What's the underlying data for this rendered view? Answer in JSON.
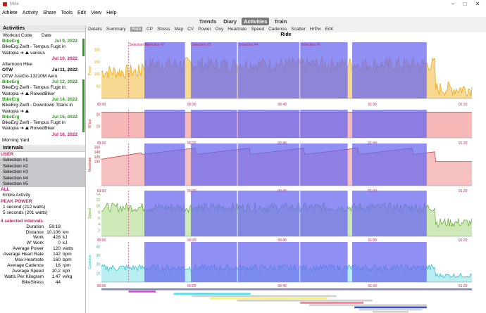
{
  "window": {
    "title": "Mike"
  },
  "menu": [
    "Athlete",
    "Activity",
    "Share",
    "Tools",
    "Edit",
    "View",
    "Help"
  ],
  "views": [
    "Trends",
    "Diary",
    "Activities",
    "Train"
  ],
  "active_view": "Activities",
  "activities": {
    "header": "Activities",
    "col_workout": "Workout Code",
    "col_date": "Date",
    "items": [
      {
        "name": "BikeErg",
        "date": "Jul 9, 2022",
        "color": "green",
        "line2": "BikeErg Zwift - Tempus Fugit in",
        "line3": "Watopia",
        "extra": "various",
        "bar": "#2aa01a"
      },
      {
        "name": "",
        "date": "Jul 10, 2022",
        "color": "red",
        "line2": "Afternoon Hike",
        "line3": "",
        "extra": "",
        "bar": ""
      },
      {
        "name": "OTW",
        "date": "Jul 11, 2022",
        "color": "black",
        "line2": "OTW JustGo-13210M Aero",
        "line3": "",
        "extra": "",
        "bar": ""
      },
      {
        "name": "BikeErg",
        "date": "Jul 12, 2022",
        "color": "green",
        "line2": "BikeErg Zwift - Tempus Fugit in",
        "line3": "Watopia",
        "extra": "RowedBiker",
        "bar": "#2aa01a"
      },
      {
        "name": "BikeErg",
        "date": "Jul 14, 2022",
        "color": "green",
        "line2": "BikeErg Zwift - Downtown Titans in",
        "line3": "Watopia",
        "extra": "",
        "bar": "#2aa01a"
      },
      {
        "name": "BikeErg",
        "date": "Jul 15, 2022",
        "color": "green",
        "line2": "BikeErg Zwift - Tempus Fugit in",
        "line3": "Watopia",
        "extra": "RowedBiker",
        "bar": "#2aa01a"
      },
      {
        "name": "",
        "date": "Jul 16, 2022",
        "color": "red",
        "line2": "Morning Yard",
        "line3": "",
        "extra": "",
        "bar": ""
      }
    ]
  },
  "intervals": {
    "header": "Intervals",
    "user_label": "USER",
    "user_items": [
      "Selection #1",
      "Selection #2",
      "Selection #3",
      "Selection #4",
      "Selection #5"
    ],
    "all_label": "ALL",
    "all_items": [
      "Entire Activity"
    ],
    "peak_label": "PEAK POWER",
    "peak_items": [
      "1 second (212 watts)",
      "5 seconds (201 watts)"
    ]
  },
  "summary": {
    "header": "4 selected intervals",
    "rows": [
      {
        "k": "Duration",
        "v": "59:18",
        "u": ""
      },
      {
        "k": "Distance",
        "v": "10.106",
        "u": "km"
      },
      {
        "k": "Work",
        "v": "428",
        "u": "kJ"
      },
      {
        "k": "W' Work",
        "v": "0",
        "u": "kJ"
      },
      {
        "k": "Average Power",
        "v": "120",
        "u": "watts"
      },
      {
        "k": "Average Heart Rate",
        "v": "142",
        "u": "bpm"
      },
      {
        "k": "Max Heartrate",
        "v": "160",
        "u": "bpm"
      },
      {
        "k": "Average Cadence",
        "v": "16",
        "u": "rpm"
      },
      {
        "k": "Average Speed",
        "v": "10.2",
        "u": "kph"
      },
      {
        "k": "Watts Per Kilogram",
        "v": "1.47",
        "u": "w/kg"
      },
      {
        "k": "BikeStress",
        "v": "44",
        "u": ""
      }
    ]
  },
  "tabs": [
    "Details",
    "Summary",
    "Ride",
    "CP",
    "Stress",
    "Map",
    "CV",
    "Power",
    "Oxy",
    "Heartrate",
    "Speed",
    "Cadence",
    "Scatter",
    "HrPw",
    "Edit"
  ],
  "active_tab": "Ride",
  "chart": {
    "title": "Ride",
    "selection_labels": [
      "Selection #1",
      "Selection #2",
      "Selection #3",
      "Selection #4",
      "Selection #5"
    ],
    "time_ticks": [
      "00:00",
      "00:20",
      "00:40",
      "01:00",
      "01:20"
    ],
    "panels": [
      {
        "name": "Power",
        "color": "#e8a000",
        "fill": "#f7d890",
        "yticks": [
          "50",
          "100",
          "150",
          "200"
        ],
        "ymax": 230
      },
      {
        "name": "W'bal",
        "color": "#d23030",
        "fill": "#f7b8b8",
        "yticks": [
          "10",
          "20"
        ],
        "ymax": 24
      },
      {
        "name": "Heartrate",
        "color": "#c0202a",
        "fill": "#f7c0c0",
        "yticks": [
          "100",
          "120",
          "140",
          "160"
        ],
        "ymax": 175
      },
      {
        "name": "Speed",
        "color": "#5aa82a",
        "fill": "#cfe8b8",
        "yticks": [
          "2",
          "4",
          "6",
          "8",
          "10",
          "12",
          "14"
        ],
        "ymax": 15
      },
      {
        "name": "Cadence",
        "color": "#20b8c8",
        "fill": "#b8eef0",
        "yticks": [
          "10",
          "20",
          "30",
          "40"
        ],
        "ymax": 45
      }
    ],
    "colors": {
      "selection": "#6a6af0",
      "selection_alt": "#7a6ae8",
      "label": "#c0206a"
    }
  }
}
